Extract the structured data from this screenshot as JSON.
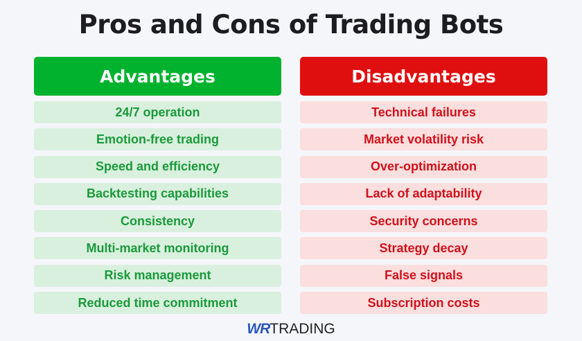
{
  "title": "Pros and Cons of Trading Bots",
  "colors": {
    "advantages_header": "#00b22d",
    "advantages_row": "#d9f0de",
    "advantages_text": "#1a9a3a",
    "disadvantages_header": "#e00f0f",
    "disadvantages_row": "#fbdede",
    "disadvantages_text": "#d0111a"
  },
  "advantages": {
    "heading": "Advantages",
    "items": [
      "24/7 operation",
      "Emotion-free trading",
      "Speed and efficiency",
      "Backtesting capabilities",
      "Consistency",
      "Multi-market monitoring",
      "Risk management",
      "Reduced time commitment"
    ]
  },
  "disadvantages": {
    "heading": "Disadvantages",
    "items": [
      "Technical failures",
      "Market volatility risk",
      "Over-optimization",
      "Lack of adaptability",
      "Security concerns",
      "Strategy decay",
      "False signals",
      "Subscription costs"
    ]
  },
  "logo": {
    "mark": "WR",
    "text": "TRADING"
  }
}
